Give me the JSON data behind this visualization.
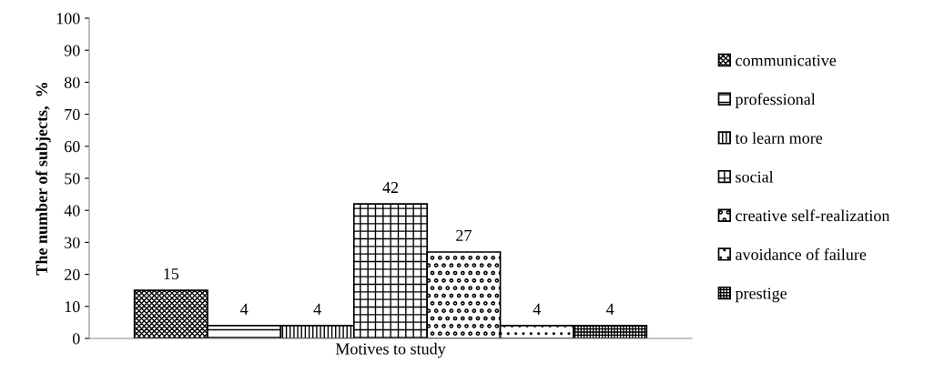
{
  "chart_data": {
    "type": "bar",
    "categories": [
      "Motives to study"
    ],
    "ylabel": "The number of subjects,  %",
    "ylim": [
      0,
      100
    ],
    "yticks": [
      0,
      10,
      20,
      30,
      40,
      50,
      60,
      70,
      80,
      90,
      100
    ],
    "grid": false,
    "legend": "right",
    "data_labels": true,
    "series": [
      {
        "name": "communicative",
        "color": "#000000",
        "values": [
          15
        ]
      },
      {
        "name": "professional",
        "color": "#000000",
        "values": [
          4
        ]
      },
      {
        "name": "to learn more",
        "color": "#000000",
        "values": [
          4
        ]
      },
      {
        "name": "social",
        "color": "#000000",
        "values": [
          42
        ]
      },
      {
        "name": "creative self-realization",
        "color": "#000000",
        "values": [
          27
        ]
      },
      {
        "name": "avoidance of failure",
        "color": "#000000",
        "values": [
          4
        ]
      },
      {
        "name": "prestige",
        "color": "#000000",
        "values": [
          4
        ]
      }
    ]
  }
}
